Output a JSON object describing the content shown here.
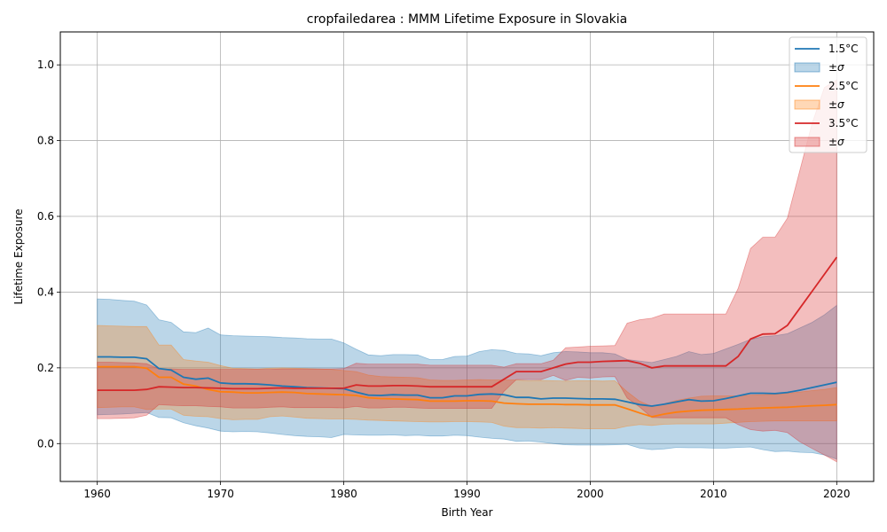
{
  "chart_data": {
    "type": "line",
    "title": "cropfailedarea : MMM Lifetime Exposure in Slovakia",
    "xlabel": "Birth Year",
    "ylabel": "Lifetime Exposure",
    "xlim": [
      1957,
      2023
    ],
    "ylim": [
      -0.1,
      1.087
    ],
    "xticks": [
      1960,
      1970,
      1980,
      1990,
      2000,
      2010,
      2020
    ],
    "xtick_labels": [
      "1960",
      "1970",
      "1980",
      "1990",
      "2000",
      "2010",
      "2020"
    ],
    "yticks": [
      0.0,
      0.2,
      0.4,
      0.6,
      0.8,
      1.0
    ],
    "ytick_labels": [
      "0.0",
      "0.2",
      "0.4",
      "0.6",
      "0.8",
      "1.0"
    ],
    "grid": true,
    "legend_position": "top-right",
    "x": [
      1960,
      1961,
      1962,
      1963,
      1964,
      1965,
      1966,
      1967,
      1968,
      1969,
      1970,
      1971,
      1972,
      1973,
      1974,
      1975,
      1976,
      1977,
      1978,
      1979,
      1980,
      1981,
      1982,
      1983,
      1984,
      1985,
      1986,
      1987,
      1988,
      1989,
      1990,
      1991,
      1992,
      1993,
      1994,
      1995,
      1996,
      1997,
      1998,
      1999,
      2000,
      2001,
      2002,
      2003,
      2004,
      2005,
      2006,
      2007,
      2008,
      2009,
      2010,
      2011,
      2012,
      2013,
      2014,
      2015,
      2016,
      2017,
      2018,
      2019,
      2020
    ],
    "series": [
      {
        "name": "1.5°C",
        "band_name": "±σ",
        "color": "#1f77b4",
        "mean": [
          0.229,
          0.229,
          0.228,
          0.228,
          0.224,
          0.198,
          0.194,
          0.175,
          0.17,
          0.173,
          0.16,
          0.158,
          0.158,
          0.157,
          0.155,
          0.152,
          0.15,
          0.148,
          0.147,
          0.146,
          0.145,
          0.136,
          0.128,
          0.127,
          0.129,
          0.128,
          0.128,
          0.121,
          0.121,
          0.126,
          0.126,
          0.13,
          0.131,
          0.129,
          0.122,
          0.122,
          0.118,
          0.12,
          0.12,
          0.119,
          0.118,
          0.118,
          0.117,
          0.11,
          0.103,
          0.099,
          0.104,
          0.11,
          0.116,
          0.112,
          0.113,
          0.119,
          0.126,
          0.133,
          0.133,
          0.132,
          0.135,
          0.141,
          0.148,
          0.155,
          0.162
        ],
        "upper": [
          0.382,
          0.381,
          0.378,
          0.376,
          0.366,
          0.327,
          0.32,
          0.295,
          0.293,
          0.305,
          0.287,
          0.285,
          0.284,
          0.283,
          0.282,
          0.28,
          0.279,
          0.277,
          0.276,
          0.276,
          0.266,
          0.249,
          0.234,
          0.232,
          0.235,
          0.235,
          0.234,
          0.222,
          0.222,
          0.23,
          0.231,
          0.243,
          0.248,
          0.246,
          0.238,
          0.237,
          0.232,
          0.24,
          0.243,
          0.242,
          0.24,
          0.24,
          0.237,
          0.222,
          0.218,
          0.214,
          0.222,
          0.23,
          0.243,
          0.235,
          0.238,
          0.25,
          0.262,
          0.275,
          0.282,
          0.285,
          0.29,
          0.305,
          0.32,
          0.34,
          0.365
        ],
        "lower": [
          0.076,
          0.077,
          0.078,
          0.08,
          0.082,
          0.069,
          0.068,
          0.055,
          0.047,
          0.041,
          0.033,
          0.031,
          0.032,
          0.031,
          0.028,
          0.024,
          0.021,
          0.019,
          0.018,
          0.016,
          0.024,
          0.023,
          0.022,
          0.022,
          0.023,
          0.021,
          0.022,
          0.02,
          0.02,
          0.022,
          0.021,
          0.017,
          0.014,
          0.012,
          0.006,
          0.007,
          0.004,
          0.0,
          -0.003,
          -0.004,
          -0.004,
          -0.004,
          -0.003,
          -0.002,
          -0.012,
          -0.016,
          -0.014,
          -0.01,
          -0.011,
          -0.011,
          -0.012,
          -0.012,
          -0.01,
          -0.009,
          -0.016,
          -0.021,
          -0.02,
          -0.023,
          -0.024,
          -0.03,
          -0.041
        ]
      },
      {
        "name": "2.5°C",
        "band_name": "±σ",
        "color": "#ff7f0e",
        "mean": [
          0.203,
          0.203,
          0.203,
          0.203,
          0.199,
          0.175,
          0.175,
          0.157,
          0.152,
          0.143,
          0.137,
          0.136,
          0.134,
          0.134,
          0.135,
          0.136,
          0.135,
          0.132,
          0.131,
          0.13,
          0.129,
          0.127,
          0.121,
          0.119,
          0.118,
          0.117,
          0.116,
          0.112,
          0.112,
          0.112,
          0.113,
          0.113,
          0.112,
          0.107,
          0.105,
          0.104,
          0.104,
          0.104,
          0.103,
          0.103,
          0.102,
          0.102,
          0.102,
          0.092,
          0.081,
          0.071,
          0.078,
          0.083,
          0.086,
          0.088,
          0.089,
          0.09,
          0.091,
          0.093,
          0.094,
          0.095,
          0.096,
          0.098,
          0.1,
          0.101,
          0.103
        ],
        "upper": [
          0.312,
          0.311,
          0.31,
          0.309,
          0.309,
          0.26,
          0.26,
          0.222,
          0.218,
          0.215,
          0.206,
          0.199,
          0.198,
          0.197,
          0.199,
          0.2,
          0.199,
          0.198,
          0.197,
          0.196,
          0.193,
          0.19,
          0.181,
          0.177,
          0.176,
          0.175,
          0.174,
          0.168,
          0.167,
          0.167,
          0.168,
          0.169,
          0.168,
          0.168,
          0.168,
          0.166,
          0.167,
          0.166,
          0.165,
          0.166,
          0.166,
          0.165,
          0.166,
          0.137,
          0.112,
          0.098,
          0.105,
          0.114,
          0.12,
          0.125,
          0.126,
          0.126,
          0.126,
          0.128,
          0.129,
          0.13,
          0.133,
          0.136,
          0.14,
          0.143,
          0.148
        ],
        "lower": [
          0.095,
          0.096,
          0.097,
          0.097,
          0.09,
          0.091,
          0.091,
          0.075,
          0.072,
          0.071,
          0.066,
          0.063,
          0.064,
          0.064,
          0.071,
          0.073,
          0.07,
          0.067,
          0.066,
          0.065,
          0.065,
          0.064,
          0.062,
          0.061,
          0.06,
          0.059,
          0.058,
          0.057,
          0.057,
          0.058,
          0.058,
          0.057,
          0.056,
          0.046,
          0.042,
          0.042,
          0.041,
          0.042,
          0.041,
          0.04,
          0.039,
          0.039,
          0.039,
          0.046,
          0.05,
          0.048,
          0.051,
          0.052,
          0.052,
          0.052,
          0.052,
          0.054,
          0.056,
          0.058,
          0.059,
          0.06,
          0.06,
          0.06,
          0.06,
          0.06,
          0.06
        ]
      },
      {
        "name": "3.5°C",
        "band_name": "±σ",
        "color": "#d62728",
        "mean": [
          0.141,
          0.141,
          0.141,
          0.141,
          0.143,
          0.15,
          0.149,
          0.148,
          0.148,
          0.147,
          0.146,
          0.145,
          0.145,
          0.145,
          0.146,
          0.147,
          0.146,
          0.146,
          0.146,
          0.146,
          0.146,
          0.155,
          0.152,
          0.152,
          0.153,
          0.153,
          0.152,
          0.15,
          0.15,
          0.15,
          0.15,
          0.15,
          0.15,
          0.17,
          0.19,
          0.19,
          0.19,
          0.2,
          0.21,
          0.215,
          0.215,
          0.217,
          0.218,
          0.219,
          0.212,
          0.2,
          0.205,
          0.205,
          0.205,
          0.205,
          0.205,
          0.205,
          0.23,
          0.276,
          0.289,
          0.29,
          0.312,
          0.357,
          0.402,
          0.447,
          0.492
        ],
        "upper": [
          0.215,
          0.215,
          0.214,
          0.213,
          0.211,
          0.197,
          0.197,
          0.196,
          0.196,
          0.196,
          0.196,
          0.196,
          0.196,
          0.196,
          0.196,
          0.197,
          0.197,
          0.197,
          0.197,
          0.197,
          0.198,
          0.212,
          0.21,
          0.21,
          0.21,
          0.21,
          0.21,
          0.207,
          0.207,
          0.207,
          0.207,
          0.207,
          0.207,
          0.202,
          0.211,
          0.211,
          0.211,
          0.22,
          0.253,
          0.255,
          0.257,
          0.258,
          0.259,
          0.318,
          0.327,
          0.331,
          0.342,
          0.342,
          0.342,
          0.342,
          0.342,
          0.342,
          0.41,
          0.515,
          0.545,
          0.545,
          0.595,
          0.72,
          0.845,
          0.94,
          0.96
        ],
        "lower": [
          0.066,
          0.066,
          0.067,
          0.068,
          0.075,
          0.103,
          0.101,
          0.1,
          0.1,
          0.098,
          0.097,
          0.094,
          0.094,
          0.094,
          0.096,
          0.097,
          0.095,
          0.095,
          0.095,
          0.095,
          0.094,
          0.098,
          0.094,
          0.094,
          0.096,
          0.096,
          0.094,
          0.093,
          0.093,
          0.093,
          0.093,
          0.093,
          0.093,
          0.138,
          0.169,
          0.169,
          0.169,
          0.18,
          0.167,
          0.175,
          0.173,
          0.176,
          0.177,
          0.12,
          0.097,
          0.069,
          0.068,
          0.068,
          0.068,
          0.068,
          0.068,
          0.068,
          0.05,
          0.037,
          0.033,
          0.035,
          0.029,
          0.005,
          -0.013,
          -0.03,
          -0.048
        ]
      }
    ]
  }
}
